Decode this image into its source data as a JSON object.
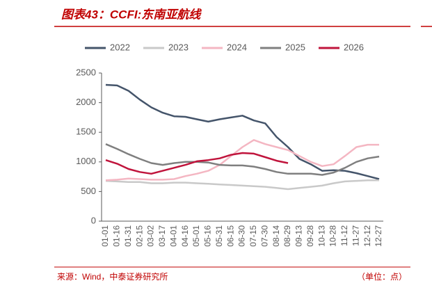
{
  "chart_data": {
    "type": "line",
    "title": "图表43：CCFI:东南亚航线",
    "source": "来源：Wind，中泰证券研究所",
    "unit": "（单位：点）",
    "categories": [
      "01-01",
      "01-16",
      "01-31",
      "02-15",
      "03-02",
      "03-17",
      "04-01",
      "04-16",
      "05-01",
      "05-16",
      "05-31",
      "06-15",
      "06-30",
      "07-15",
      "07-30",
      "08-14",
      "08-29",
      "09-13",
      "09-28",
      "10-13",
      "10-28",
      "11-12",
      "11-27",
      "12-12",
      "12-27"
    ],
    "series": [
      {
        "name": "2022",
        "color": "#44546a",
        "values": [
          2300,
          2290,
          2200,
          2050,
          1920,
          1830,
          1770,
          1760,
          1720,
          1680,
          1720,
          1750,
          1780,
          1700,
          1650,
          1420,
          1250,
          1050,
          960,
          850,
          860,
          850,
          810,
          760,
          710
        ]
      },
      {
        "name": "2023",
        "color": "#c9c9c9",
        "values": [
          680,
          670,
          660,
          660,
          640,
          640,
          650,
          650,
          640,
          630,
          620,
          610,
          600,
          590,
          580,
          560,
          540,
          560,
          580,
          600,
          640,
          670,
          680,
          690,
          690
        ]
      },
      {
        "name": "2024",
        "color": "#f4b6c2",
        "values": [
          690,
          700,
          720,
          710,
          700,
          700,
          710,
          760,
          800,
          850,
          950,
          1100,
          1250,
          1370,
          1300,
          1250,
          1200,
          1100,
          1000,
          930,
          960,
          1100,
          1250,
          1290,
          1290
        ]
      },
      {
        "name": "2025",
        "color": "#7f7f7f",
        "values": [
          1300,
          1220,
          1130,
          1050,
          980,
          950,
          980,
          1000,
          1000,
          990,
          950,
          940,
          940,
          920,
          880,
          830,
          800,
          800,
          800,
          780,
          820,
          900,
          1000,
          1060,
          1090
        ]
      },
      {
        "name": "2026",
        "color": "#c0143c",
        "values": [
          1030,
          970,
          880,
          830,
          800,
          850,
          900,
          950,
          1010,
          1030,
          1060,
          1120,
          1150,
          1140,
          1080,
          1020,
          980,
          null,
          null,
          null,
          null,
          null,
          null,
          null,
          null
        ]
      }
    ],
    "ylim": [
      0,
      2500
    ],
    "yticks": [
      0,
      500,
      1000,
      1500,
      2000,
      2500
    ]
  }
}
